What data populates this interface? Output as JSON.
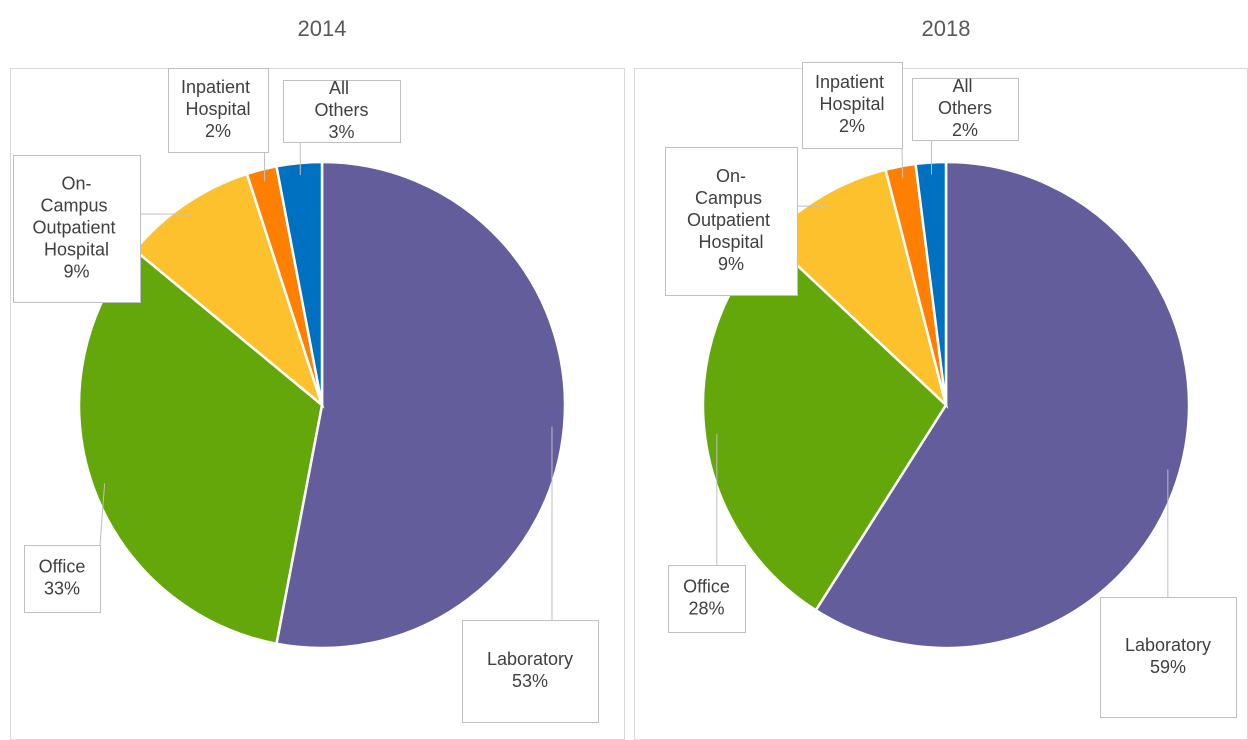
{
  "chart_data": [
    {
      "type": "pie",
      "title": "2014",
      "categories": [
        "Laboratory",
        "Office",
        "On-Campus Outpatient Hospital",
        "Inpatient Hospital",
        "All Others"
      ],
      "values": [
        53,
        33,
        9,
        2,
        3
      ],
      "value_labels": [
        "53%",
        "33%",
        "9%",
        "2%",
        "3%"
      ],
      "colors": [
        "#635d9b",
        "#63a70a",
        "#fdc12e",
        "#ff8000",
        "#0070c0"
      ]
    },
    {
      "type": "pie",
      "title": "2018",
      "categories": [
        "Laboratory",
        "Office",
        "On-Campus Outpatient Hospital",
        "Inpatient Hospital",
        "All Others"
      ],
      "values": [
        59,
        28,
        9,
        2,
        2
      ],
      "value_labels": [
        "59%",
        "28%",
        "9%",
        "2%",
        "2%"
      ],
      "colors": [
        "#635d9b",
        "#63a70a",
        "#fdc12e",
        "#ff8000",
        "#0070c0"
      ]
    }
  ]
}
